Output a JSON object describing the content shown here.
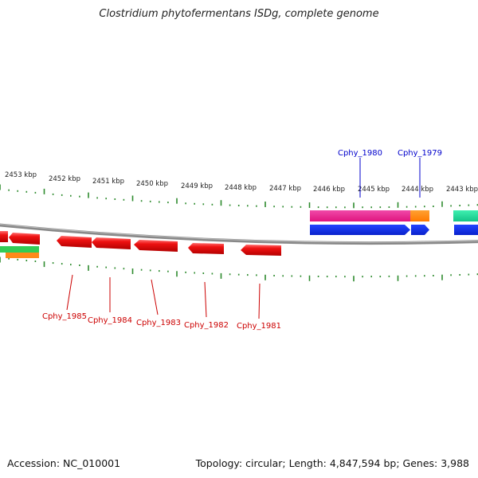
{
  "title": "Clostridium phytofermentans ISDg, complete genome",
  "footer": {
    "accession": "Accession: NC_010001",
    "summary": "Topology: circular; Length: 4,847,594 bp; Genes: 3,988"
  },
  "scale": {
    "unit_label": "kbp",
    "ticks": [
      "2453 kbp",
      "2452 kbp",
      "2451 kbp",
      "2450 kbp",
      "2449 kbp",
      "2448 kbp",
      "2447 kbp",
      "2446 kbp",
      "2445 kbp",
      "2444 kbp",
      "2443 kbp"
    ]
  },
  "gene_labels": {
    "forward": [
      "Cphy_1980",
      "Cphy_1979"
    ],
    "reverse": [
      "Cphy_1985",
      "Cphy_1984",
      "Cphy_1983",
      "Cphy_1982",
      "Cphy_1981"
    ]
  },
  "colors": {
    "backbone": "#888888",
    "tick": "#2e8b2e",
    "reverse_gene": "#ee1111",
    "reverse_label": "#cc0000",
    "forward_label": "#0000cc",
    "blue_gene": "#1133ee",
    "magenta_gene": "#ee2299",
    "orange_gene": "#ff8800",
    "teal_gene": "#22dd99",
    "green_gene": "#33cc33"
  }
}
